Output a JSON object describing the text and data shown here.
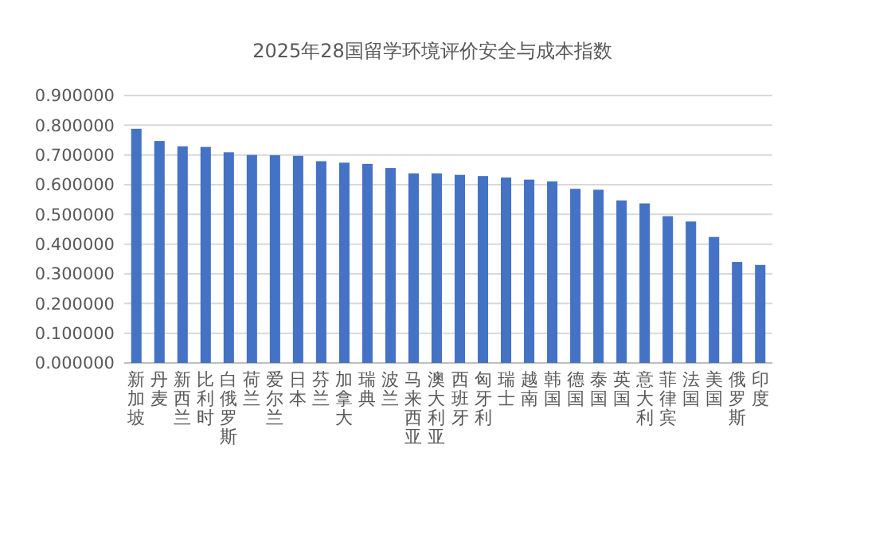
{
  "chart_data": {
    "type": "bar",
    "title": "2025年28国留学环境评价安全与成本指数",
    "categories": [
      "新加坡",
      "丹麦",
      "新西兰",
      "比利时",
      "白俄罗斯",
      "荷兰",
      "爱尔兰",
      "日本",
      "芬兰",
      "加拿大",
      "瑞典",
      "波兰",
      "马来西亚",
      "澳大利亚",
      "西班牙",
      "匈牙利",
      "瑞士",
      "越南",
      "韩国",
      "德国",
      "泰国",
      "英国",
      "意大利",
      "菲律宾",
      "法国",
      "美国",
      "俄罗斯",
      "印度"
    ],
    "values": [
      0.788,
      0.747,
      0.729,
      0.727,
      0.709,
      0.7,
      0.699,
      0.697,
      0.679,
      0.674,
      0.67,
      0.656,
      0.638,
      0.638,
      0.633,
      0.629,
      0.624,
      0.617,
      0.611,
      0.586,
      0.583,
      0.547,
      0.537,
      0.494,
      0.476,
      0.424,
      0.34,
      0.33
    ],
    "color": "#4472c4",
    "ylim": [
      0,
      0.9
    ],
    "yticks": [
      {
        "value": 0,
        "label": "0.000000"
      },
      {
        "value": 0.1,
        "label": "0.100000"
      },
      {
        "value": 0.2,
        "label": "0.200000"
      },
      {
        "value": 0.3,
        "label": "0.300000"
      },
      {
        "value": 0.4,
        "label": "0.400000"
      },
      {
        "value": 0.5,
        "label": "0.500000"
      },
      {
        "value": 0.6,
        "label": "0.600000"
      },
      {
        "value": 0.7,
        "label": "0.700000"
      },
      {
        "value": 0.8,
        "label": "0.800000"
      },
      {
        "value": 0.9,
        "label": "0.900000"
      }
    ],
    "grid": true
  }
}
